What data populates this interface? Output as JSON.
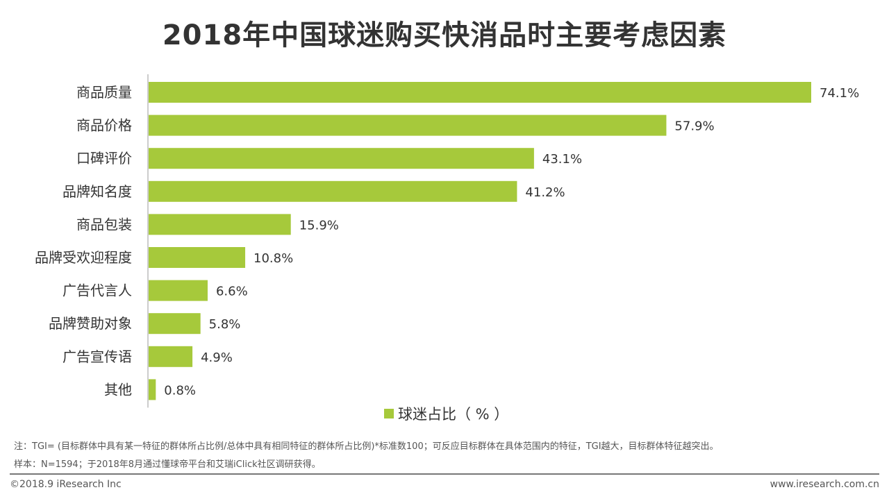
{
  "title": "2018年中国球迷购买快消品时主要考虑因素",
  "chart_data": {
    "type": "bar",
    "orientation": "horizontal",
    "title": "2018年中国球迷购买快消品时主要考虑因素",
    "categories": [
      "商品质量",
      "商品价格",
      "口碑评价",
      "品牌知名度",
      "商品包装",
      "品牌受欢迎程度",
      "广告代言人",
      "品牌赞助对象",
      "广告宣传语",
      "其他"
    ],
    "series": [
      {
        "name": "球迷占比（%）",
        "values": [
          74.1,
          57.9,
          43.1,
          41.2,
          15.9,
          10.8,
          6.6,
          5.8,
          4.9,
          0.8
        ],
        "labels": [
          "74.1%",
          "57.9%",
          "43.1%",
          "41.2%",
          "15.9%",
          "10.8%",
          "6.6%",
          "5.8%",
          "4.9%",
          "0.8%"
        ]
      }
    ],
    "xlim": [
      0,
      74.1
    ],
    "grid": false,
    "legend_position": "bottom",
    "bar_color": "#a6c93b"
  },
  "legend_label": "球迷占比（ % ）",
  "notes": {
    "note1": "注：TGI= (目标群体中具有某一特征的群体所占比例/总体中具有相同特征的群体所占比例)*标准数100；可反应目标群体在具体范围内的特征，TGI越大，目标群体特征越突出。",
    "note2": "样本：N=1594；于2018年8月通过懂球帝平台和艾瑞iClick社区调研获得。"
  },
  "footer": {
    "copyright": "©2018.9 iResearch Inc",
    "website": "www.iresearch.com.cn"
  }
}
